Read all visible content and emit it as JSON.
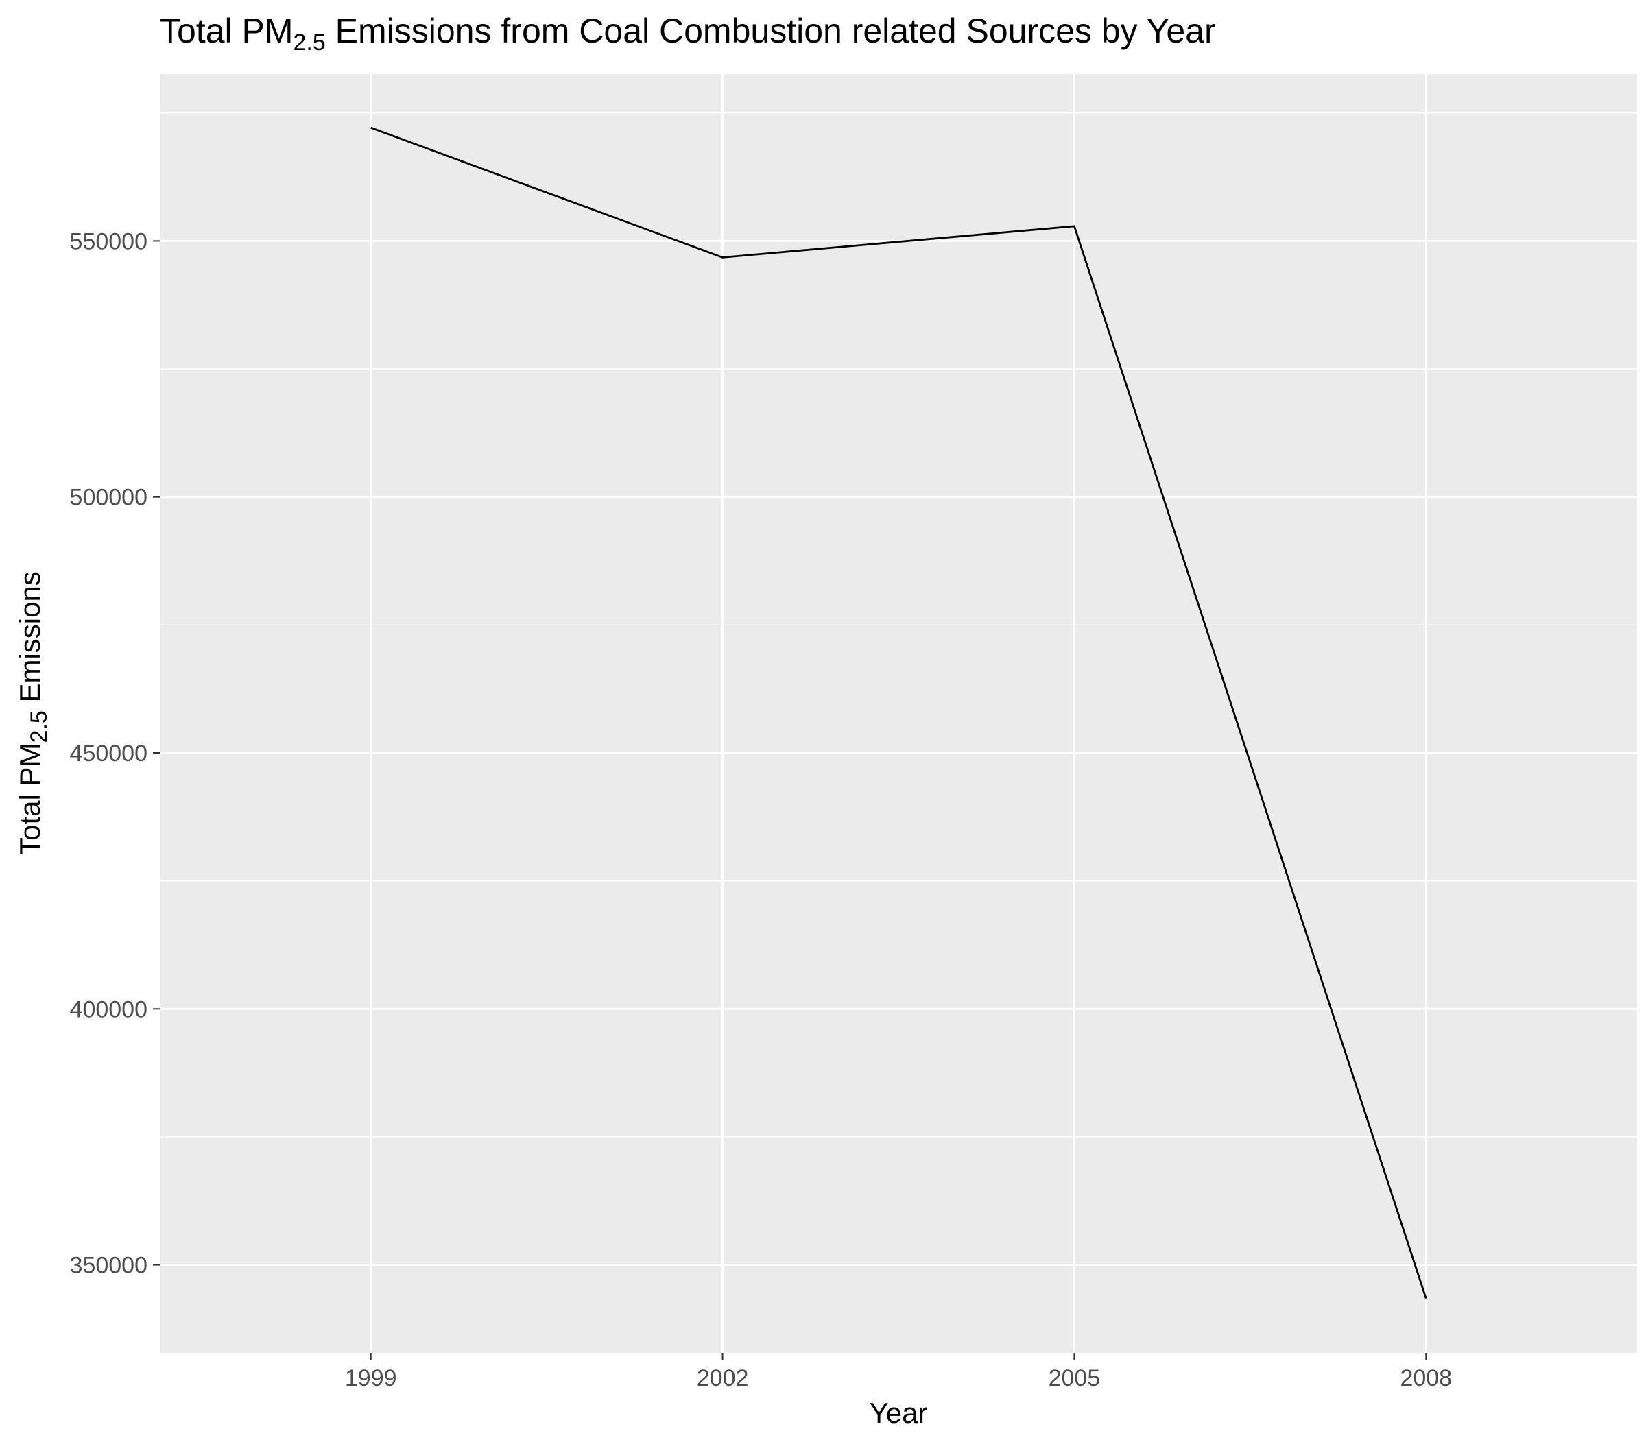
{
  "chart_data": {
    "type": "line",
    "title": {
      "prefix": "Total PM",
      "subscript": "2.5",
      "suffix": " Emissions from Coal Combustion related Sources by Year"
    },
    "xlabel": "Year",
    "ylabel": {
      "prefix": "Total PM",
      "subscript": "2.5",
      "suffix": " Emissions"
    },
    "x": [
      1999,
      2002,
      2005,
      2008
    ],
    "values": [
      572126,
      546789,
      552882,
      343432
    ],
    "x_ticks": [
      "1999",
      "2002",
      "2005",
      "2008"
    ],
    "y_ticks": [
      "350000",
      "400000",
      "450000",
      "500000",
      "550000"
    ],
    "y_tick_values": [
      350000,
      400000,
      450000,
      500000,
      550000
    ],
    "xlim": [
      1997.2,
      2009.8
    ],
    "ylim": [
      332800,
      582600
    ],
    "grid": true,
    "colors": {
      "panel": "#ebebeb",
      "grid_major": "#ffffff",
      "line": "#000000",
      "tick_text": "#4d4d4d"
    }
  }
}
